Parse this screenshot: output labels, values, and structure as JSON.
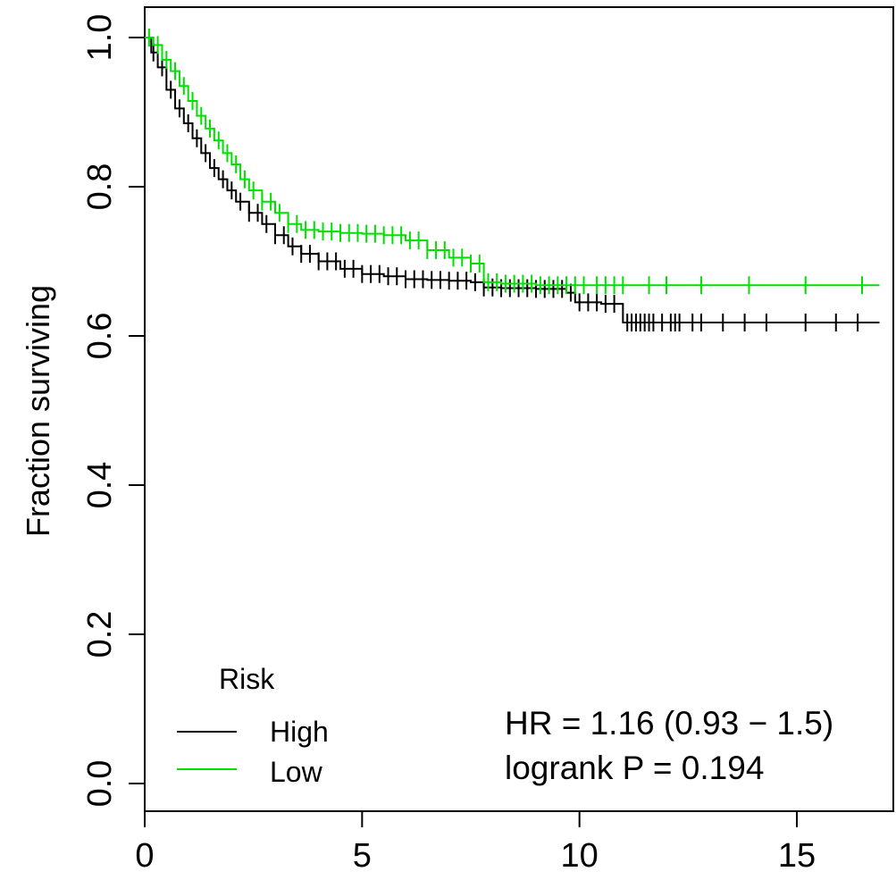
{
  "chart_data": {
    "type": "line",
    "subtype": "kaplan-meier",
    "title": "",
    "xlabel": "",
    "ylabel": "Fraction surviving",
    "xlim": [
      0,
      17
    ],
    "ylim": [
      0,
      1
    ],
    "x_ticks": [
      "0",
      "5",
      "10",
      "15"
    ],
    "x_tick_values": [
      0,
      5,
      10,
      15
    ],
    "y_ticks": [
      "0.0",
      "0.2",
      "0.4",
      "0.6",
      "0.8",
      "1.0"
    ],
    "y_tick_values": [
      0,
      0.2,
      0.4,
      0.6,
      0.8,
      1.0
    ],
    "legend": {
      "title": "Risk",
      "position": "bottom-left",
      "entries": [
        "High",
        "Low"
      ]
    },
    "annotations": {
      "hr": "HR = 1.16 (0.93 − 1.5)",
      "logrank": "logrank P = 0.194"
    },
    "series": [
      {
        "name": "High",
        "color": "#000000",
        "points": [
          [
            0,
            1.0
          ],
          [
            0.15,
            0.98
          ],
          [
            0.3,
            0.96
          ],
          [
            0.5,
            0.93
          ],
          [
            0.7,
            0.905
          ],
          [
            0.9,
            0.885
          ],
          [
            1.1,
            0.865
          ],
          [
            1.3,
            0.845
          ],
          [
            1.5,
            0.825
          ],
          [
            1.7,
            0.81
          ],
          [
            1.9,
            0.795
          ],
          [
            2.1,
            0.78
          ],
          [
            2.4,
            0.765
          ],
          [
            2.7,
            0.75
          ],
          [
            3.0,
            0.735
          ],
          [
            3.3,
            0.72
          ],
          [
            3.6,
            0.71
          ],
          [
            4.0,
            0.7
          ],
          [
            4.5,
            0.69
          ],
          [
            5.0,
            0.683
          ],
          [
            5.5,
            0.68
          ],
          [
            6.0,
            0.676
          ],
          [
            6.5,
            0.675
          ],
          [
            7.0,
            0.674
          ],
          [
            7.5,
            0.672
          ],
          [
            7.8,
            0.665
          ],
          [
            8.2,
            0.664
          ],
          [
            9.0,
            0.663
          ],
          [
            9.7,
            0.658
          ],
          [
            9.9,
            0.645
          ],
          [
            10.5,
            0.643
          ],
          [
            11.0,
            0.618
          ],
          [
            16.9,
            0.618
          ]
        ],
        "censor_x": [
          0.2,
          0.4,
          0.6,
          0.8,
          1.0,
          1.2,
          1.4,
          1.6,
          1.8,
          2.0,
          2.2,
          2.4,
          2.6,
          2.8,
          3.0,
          3.2,
          3.4,
          3.6,
          3.8,
          4.0,
          4.2,
          4.4,
          4.6,
          4.8,
          5.0,
          5.2,
          5.4,
          5.6,
          5.8,
          6.0,
          6.2,
          6.4,
          6.6,
          6.8,
          7.0,
          7.2,
          7.4,
          7.6,
          7.8,
          8.0,
          8.2,
          8.4,
          8.6,
          8.8,
          9.0,
          9.2,
          9.4,
          9.6,
          9.8,
          10.0,
          10.2,
          10.4,
          10.6,
          10.8,
          11.1,
          11.2,
          11.3,
          11.4,
          11.5,
          11.6,
          11.7,
          11.9,
          12.1,
          12.2,
          12.3,
          12.6,
          12.8,
          13.3,
          13.8,
          14.3,
          15.2,
          15.9,
          16.4
        ]
      },
      {
        "name": "Low",
        "color": "#00e000",
        "points": [
          [
            0,
            1.0
          ],
          [
            0.2,
            0.99
          ],
          [
            0.4,
            0.97
          ],
          [
            0.6,
            0.955
          ],
          [
            0.8,
            0.935
          ],
          [
            1.0,
            0.915
          ],
          [
            1.2,
            0.895
          ],
          [
            1.4,
            0.878
          ],
          [
            1.6,
            0.862
          ],
          [
            1.8,
            0.845
          ],
          [
            2.0,
            0.83
          ],
          [
            2.2,
            0.81
          ],
          [
            2.4,
            0.795
          ],
          [
            2.7,
            0.78
          ],
          [
            3.0,
            0.765
          ],
          [
            3.3,
            0.75
          ],
          [
            3.6,
            0.742
          ],
          [
            4.0,
            0.74
          ],
          [
            4.5,
            0.738
          ],
          [
            5.0,
            0.737
          ],
          [
            5.5,
            0.735
          ],
          [
            6.0,
            0.728
          ],
          [
            6.5,
            0.715
          ],
          [
            7.0,
            0.705
          ],
          [
            7.5,
            0.697
          ],
          [
            7.8,
            0.672
          ],
          [
            8.2,
            0.67
          ],
          [
            9.0,
            0.668
          ],
          [
            10.0,
            0.668
          ],
          [
            16.9,
            0.668
          ]
        ],
        "censor_x": [
          0.1,
          0.3,
          0.5,
          0.7,
          0.9,
          1.1,
          1.3,
          1.5,
          1.7,
          1.9,
          2.1,
          2.3,
          2.5,
          2.7,
          2.9,
          3.1,
          3.3,
          3.5,
          3.7,
          3.9,
          4.1,
          4.3,
          4.5,
          4.7,
          4.9,
          5.1,
          5.3,
          5.5,
          5.7,
          5.9,
          6.1,
          6.3,
          6.5,
          6.7,
          6.9,
          7.1,
          7.3,
          7.5,
          7.7,
          7.9,
          8.1,
          8.3,
          8.5,
          8.7,
          8.9,
          9.1,
          9.3,
          9.5,
          9.7,
          9.9,
          10.1,
          10.4,
          10.6,
          10.8,
          11.0,
          11.6,
          12.0,
          12.8,
          13.9,
          15.2,
          16.5
        ]
      }
    ]
  }
}
